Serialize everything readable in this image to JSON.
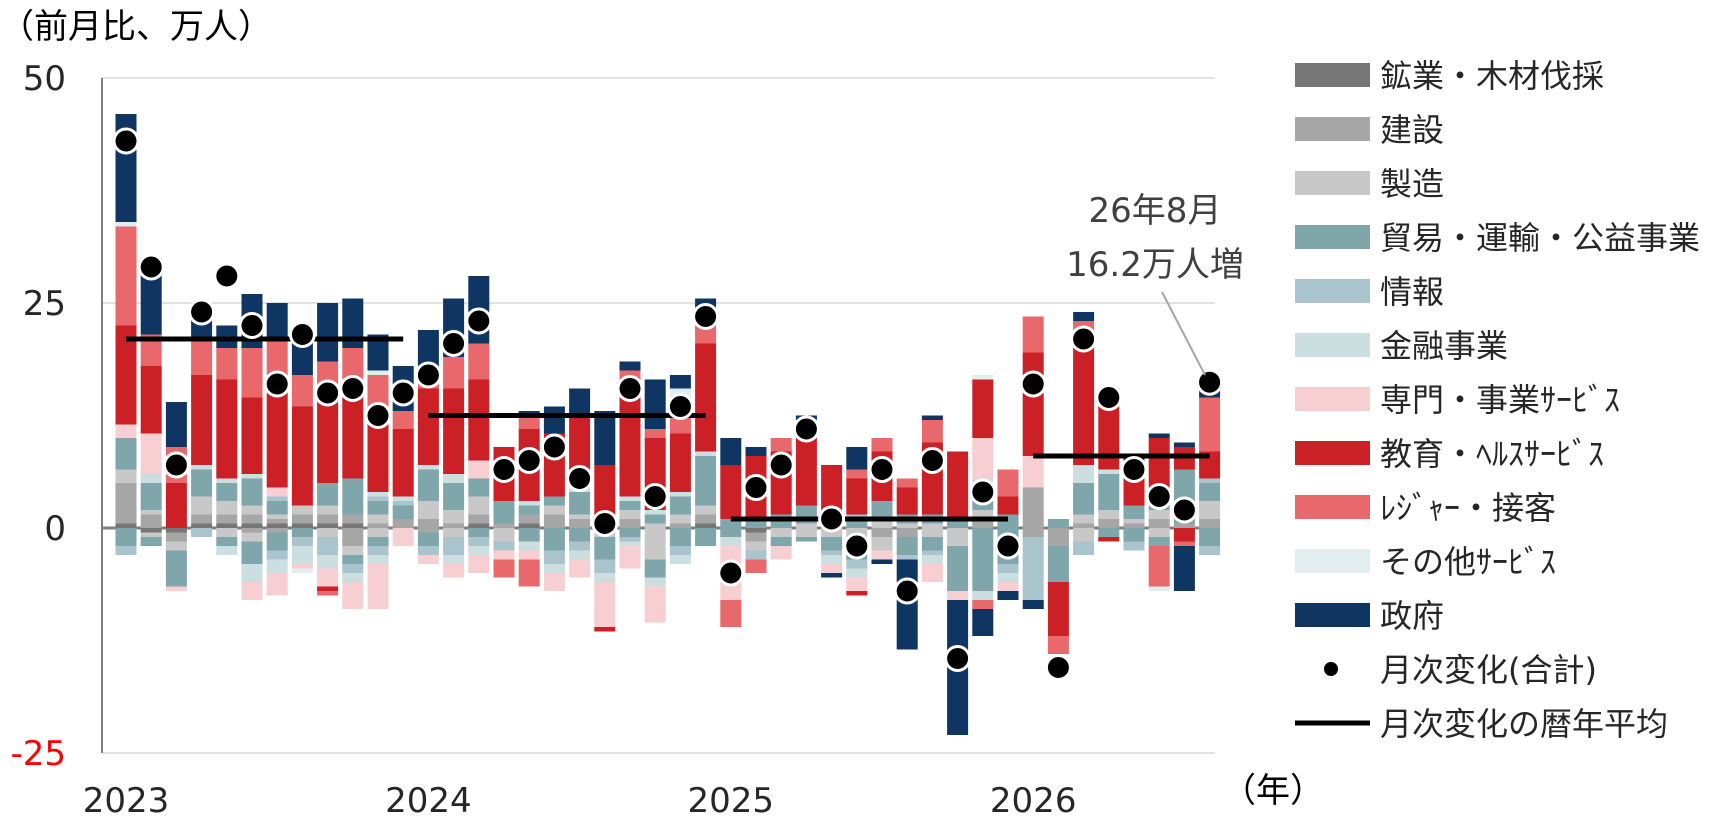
{
  "chart_data": {
    "type": "bar",
    "ylabel": "（前月比、万人）",
    "xlabel": "（年）",
    "ylim": [
      -25,
      50
    ],
    "yticks": [
      50,
      25,
      0,
      -25
    ],
    "xticks": [
      "2023",
      "2024",
      "2025",
      "2026"
    ],
    "grid": true,
    "legend_position": "right",
    "annotation": {
      "line1": "26年8月",
      "line2": "16.2万人増"
    },
    "colors": {
      "mining": "#767676",
      "construction": "#a6a6a6",
      "manufacturing": "#c8c8c8",
      "trade": "#7ea6ab",
      "information": "#a9c4cd",
      "finance": "#cbdfe0",
      "professional": "#f7cfd2",
      "health": "#cc2027",
      "leisure": "#e9686b",
      "other": "#e3edf0",
      "government": "#0f3562",
      "negative_tick": "#ff0000"
    },
    "legend": [
      {
        "key": "mining",
        "label": "鉱業・木材伐採"
      },
      {
        "key": "construction",
        "label": "建設"
      },
      {
        "key": "manufacturing",
        "label": "製造"
      },
      {
        "key": "trade",
        "label": "貿易・運輸・公益事業"
      },
      {
        "key": "information",
        "label": "情報"
      },
      {
        "key": "finance",
        "label": "金融事業"
      },
      {
        "key": "professional",
        "label": "専門・事業ｻｰﾋﾞｽ"
      },
      {
        "key": "health",
        "label": "教育・ﾍﾙｽｻｰﾋﾞｽ"
      },
      {
        "key": "leisure",
        "label": "ﾚｼﾞｬｰ・接客"
      },
      {
        "key": "other",
        "label": "その他ｻｰﾋﾞｽ"
      },
      {
        "key": "government",
        "label": "政府"
      },
      {
        "key": "total",
        "label": "月次変化(合計)"
      },
      {
        "key": "average",
        "label": "月次変化の暦年平均"
      }
    ],
    "series_keys": [
      "mining",
      "construction",
      "manufacturing",
      "trade",
      "information",
      "finance",
      "professional",
      "health",
      "leisure",
      "other",
      "government"
    ],
    "months": [
      "2023-01",
      "2023-02",
      "2023-03",
      "2023-04",
      "2023-05",
      "2023-06",
      "2023-07",
      "2023-08",
      "2023-09",
      "2023-10",
      "2023-11",
      "2023-12",
      "2024-01",
      "2024-02",
      "2024-03",
      "2024-04",
      "2024-05",
      "2024-06",
      "2024-07",
      "2024-08",
      "2024-09",
      "2024-10",
      "2024-11",
      "2024-12",
      "2025-01",
      "2025-02",
      "2025-03",
      "2025-04",
      "2025-05",
      "2025-06",
      "2025-07",
      "2025-08",
      "2025-09",
      "2025-10",
      "2025-11",
      "2025-12",
      "2026-01",
      "2026-02",
      "2026-03",
      "2026-04",
      "2026-05",
      "2026-06",
      "2026-07",
      "2026-08"
    ],
    "bars": [
      {
        "v": [
          0.5,
          4.5,
          1.5,
          3.5,
          0,
          0,
          1.5,
          11,
          11,
          0.5,
          12
        ],
        "neg": [
          0,
          0,
          0,
          -2,
          -1,
          0,
          0,
          0,
          0,
          0,
          0
        ]
      },
      {
        "v": [
          0,
          1.5,
          0.5,
          3,
          0,
          1,
          4.5,
          7.5,
          3.5,
          0,
          8.5
        ],
        "neg": [
          -0.5,
          0,
          -0.5,
          -1,
          0,
          0,
          0,
          0,
          0,
          0,
          0
        ]
      },
      {
        "v": [
          0,
          0,
          0,
          0,
          0,
          0,
          0,
          5,
          4,
          0,
          5
        ],
        "neg": [
          -0.5,
          -1,
          -1,
          -4,
          0,
          0,
          -0.5,
          0,
          0,
          0,
          0
        ]
      },
      {
        "v": [
          0.5,
          1,
          2,
          3,
          0,
          0.5,
          0,
          10,
          4,
          0,
          3
        ],
        "neg": [
          0,
          0,
          0,
          0,
          -1,
          0,
          0,
          0,
          0,
          0,
          0
        ]
      },
      {
        "v": [
          0.5,
          1,
          1.5,
          2,
          0,
          0.5,
          0,
          11,
          3.5,
          0,
          2.5
        ],
        "neg": [
          0,
          0,
          -1,
          -1,
          0,
          -1,
          0,
          0,
          0,
          0,
          0
        ]
      },
      {
        "v": [
          0.5,
          1,
          1,
          3,
          0,
          0.5,
          0,
          8.5,
          5.5,
          0,
          6
        ],
        "neg": [
          0,
          -0.5,
          -1,
          -2.5,
          0,
          -2,
          -2,
          0,
          0,
          0,
          0
        ]
      },
      {
        "v": [
          0.5,
          0.5,
          0.5,
          1.5,
          0.5,
          0,
          1,
          11,
          5.5,
          0,
          4
        ],
        "neg": [
          0,
          -0.5,
          0,
          -2,
          -1,
          -1.5,
          -2.5,
          0,
          0,
          0,
          0
        ]
      },
      {
        "v": [
          0.5,
          1,
          1,
          0,
          0,
          0,
          0,
          11,
          3.5,
          0,
          4.5
        ],
        "neg": [
          0,
          0,
          0,
          -1,
          -1,
          -2,
          -0.5,
          0,
          0,
          -0.5,
          0
        ]
      },
      {
        "v": [
          0.5,
          1,
          1,
          2.5,
          0,
          0,
          0,
          9.5,
          4,
          0,
          6.5
        ],
        "neg": [
          0,
          0,
          -1,
          0,
          -2,
          -1.5,
          -2,
          -0.5,
          -0.5,
          0,
          0
        ]
      },
      {
        "v": [
          0.5,
          1,
          0,
          4,
          0,
          0,
          0,
          10.5,
          4,
          0,
          5.5
        ],
        "neg": [
          0,
          -2,
          -1,
          -1,
          -1,
          -1,
          -3,
          0,
          0,
          0,
          0
        ]
      },
      {
        "v": [
          0,
          0.5,
          1,
          1.5,
          0.5,
          0.5,
          0,
          9,
          4,
          0.5,
          4
        ],
        "neg": [
          0,
          0,
          -1,
          -1,
          -1,
          -1,
          -5,
          0,
          0,
          0,
          0
        ]
      },
      {
        "v": [
          0,
          1,
          0,
          1.5,
          0.5,
          0.5,
          0,
          7.5,
          2,
          0,
          5
        ],
        "neg": [
          0,
          0,
          0,
          0,
          0,
          0,
          -2,
          0,
          0,
          0,
          0
        ]
      },
      {
        "v": [
          0,
          1,
          2,
          3.5,
          0,
          0.5,
          0,
          8.5,
          1.5,
          0,
          5
        ],
        "neg": [
          0,
          -0.5,
          0,
          -1.5,
          -1,
          0,
          -1,
          0,
          0,
          0,
          0
        ]
      },
      {
        "v": [
          0,
          0.5,
          1.5,
          3,
          0,
          1,
          0,
          9.5,
          3.5,
          0,
          6.5
        ],
        "neg": [
          0,
          0,
          -1,
          0,
          -2,
          -1,
          -1.5,
          0,
          0,
          0,
          0
        ]
      },
      {
        "v": [
          0.5,
          1,
          2,
          2,
          0,
          0,
          2,
          9,
          4,
          0,
          7.5
        ],
        "neg": [
          0,
          0,
          0,
          -1,
          -1,
          -1,
          -2,
          0,
          0,
          0,
          0
        ]
      },
      {
        "v": [
          0,
          0.5,
          0,
          2.5,
          0,
          0,
          0,
          6,
          0,
          0,
          0
        ],
        "neg": [
          0,
          0,
          -1.5,
          0,
          -1,
          0,
          -1,
          0,
          -2,
          0,
          0
        ]
      },
      {
        "v": [
          0.5,
          1,
          0,
          1,
          0,
          0.5,
          0,
          8,
          1.5,
          0,
          0.5
        ],
        "neg": [
          0,
          0,
          0,
          -1.5,
          0,
          -1,
          -1,
          0,
          -3,
          0,
          0
        ]
      },
      {
        "v": [
          0,
          1.5,
          1,
          1,
          0,
          0,
          0,
          7,
          0,
          0,
          3
        ],
        "neg": [
          0,
          0,
          0,
          -2.5,
          -1.5,
          -1,
          -2,
          0,
          0,
          0,
          0
        ]
      },
      {
        "v": [
          0,
          1,
          0.5,
          2.5,
          0,
          0.5,
          0.5,
          7.5,
          0,
          0,
          3
        ],
        "neg": [
          0,
          0,
          0,
          -1.5,
          -1,
          -1,
          -2,
          0,
          0,
          0,
          0
        ]
      },
      {
        "v": [
          0,
          0.5,
          0,
          0.5,
          0,
          0,
          0,
          6,
          0,
          0,
          6
        ],
        "neg": [
          0,
          0,
          -1,
          -2.5,
          -1.5,
          -1,
          -5,
          -0.5,
          0,
          0,
          0
        ]
      },
      {
        "v": [
          0,
          1,
          1,
          1,
          0,
          0.5,
          0,
          13,
          1,
          0,
          1
        ],
        "neg": [
          0,
          0,
          0,
          -1,
          -0.5,
          -0.5,
          -2.5,
          0,
          0,
          0,
          0
        ]
      },
      {
        "v": [
          0,
          0,
          0.5,
          1,
          0,
          0.5,
          0,
          8,
          1,
          0,
          5.5
        ],
        "neg": [
          0,
          0,
          -3.5,
          -2,
          0,
          -1,
          -4,
          0,
          0,
          0,
          0
        ]
      },
      {
        "v": [
          0,
          0.5,
          1,
          2,
          0,
          0.5,
          0,
          6.5,
          4,
          1,
          1.5
        ],
        "neg": [
          0,
          0,
          0,
          -2,
          -1,
          -1,
          0,
          0,
          0,
          0,
          0
        ]
      },
      {
        "v": [
          0.5,
          1,
          1,
          5.5,
          0,
          0.5,
          0,
          12,
          3,
          1,
          1
        ],
        "neg": [
          0,
          0,
          0,
          -2,
          0,
          0,
          0,
          0,
          0,
          0,
          0
        ]
      },
      {
        "v": [
          0,
          0,
          0,
          1,
          0,
          0,
          0,
          6,
          0,
          0,
          3
        ],
        "neg": [
          0,
          0,
          0,
          -1,
          0,
          -1,
          -6,
          0,
          -3,
          0,
          0
        ]
      },
      {
        "v": [
          0,
          0,
          0,
          1,
          0,
          0,
          0,
          7,
          0,
          0,
          1
        ],
        "neg": [
          -0.5,
          -1,
          -1,
          0,
          -1,
          0,
          0,
          0,
          -1.5,
          0,
          0
        ]
      },
      {
        "v": [
          0,
          0,
          0,
          1.5,
          0,
          0,
          0,
          7,
          1.5,
          0,
          0
        ],
        "neg": [
          0,
          0,
          -1,
          -1,
          0,
          0,
          -1.5,
          0,
          0,
          0,
          0
        ]
      },
      {
        "v": [
          0,
          0,
          0.5,
          2,
          0,
          0,
          0,
          7.5,
          2,
          0,
          0.5
        ],
        "neg": [
          0,
          0,
          -1,
          -0.5,
          0,
          0,
          0,
          0,
          0,
          0,
          0
        ]
      },
      {
        "v": [
          0,
          0,
          0,
          0,
          0,
          0,
          0,
          7,
          0,
          0,
          0
        ],
        "neg": [
          0,
          0,
          -1,
          -1.5,
          -0.5,
          -1,
          -1,
          0,
          0,
          0,
          -0.5
        ]
      },
      {
        "v": [
          0,
          0,
          0,
          1,
          0.5,
          0,
          0,
          4,
          1,
          0,
          2.5
        ],
        "neg": [
          0,
          0,
          -2,
          -1.5,
          -1,
          -1,
          -1.5,
          -0.5,
          0,
          0,
          0
        ]
      },
      {
        "v": [
          0,
          0,
          1,
          2,
          0,
          0,
          0,
          5.5,
          1.5,
          0,
          0
        ],
        "neg": [
          0,
          -1,
          -1.5,
          0,
          0,
          0,
          -1,
          0,
          0,
          0,
          -0.5
        ]
      },
      {
        "v": [
          0,
          0,
          0.5,
          1,
          0,
          0,
          0,
          3,
          1,
          0,
          0
        ],
        "neg": [
          0,
          -1,
          0,
          -2,
          -0.5,
          0,
          0,
          0,
          0,
          0,
          -10
        ]
      },
      {
        "v": [
          0,
          0,
          0.5,
          1,
          0,
          0,
          0,
          8,
          2.5,
          0,
          0.5
        ],
        "neg": [
          0,
          0,
          -1,
          -1.5,
          -0.5,
          -1,
          -2,
          0,
          0,
          0,
          0
        ]
      },
      {
        "v": [
          0,
          0,
          0,
          1,
          0,
          0,
          0,
          7.5,
          0,
          0,
          0
        ],
        "neg": [
          0,
          0,
          -2,
          -5,
          0,
          0,
          -1,
          0,
          0,
          0,
          -15
        ]
      },
      {
        "v": [
          0,
          1,
          1,
          2,
          0.5,
          1,
          4.5,
          6.5,
          0,
          0.5,
          0
        ],
        "neg": [
          0,
          0,
          0,
          -7,
          0,
          -1,
          0,
          0,
          -1,
          0,
          -3
        ]
      },
      {
        "v": [
          0,
          0,
          0,
          1.5,
          0,
          0,
          0,
          2,
          3,
          0,
          0
        ],
        "neg": [
          0,
          0,
          0,
          -4,
          -1,
          -1,
          -1,
          0,
          0,
          0,
          -1
        ]
      },
      {
        "v": [
          0,
          4.5,
          0,
          0,
          0,
          0,
          3.5,
          11.5,
          4,
          0,
          0
        ],
        "neg": [
          0,
          -1,
          0,
          0,
          -7,
          0,
          0,
          0,
          0,
          0,
          -1
        ]
      },
      {
        "v": [
          0,
          0,
          0,
          1,
          0,
          0,
          0,
          0,
          0,
          0,
          0
        ],
        "neg": [
          0,
          -2,
          0,
          -4,
          0,
          0,
          0,
          -6,
          -2,
          0,
          0
        ]
      },
      {
        "v": [
          0,
          0.5,
          1,
          3.5,
          0,
          2,
          0,
          13,
          3,
          0,
          1
        ],
        "neg": [
          0,
          0,
          -1.5,
          0,
          -1.5,
          0,
          0,
          0,
          0,
          0,
          0
        ]
      },
      {
        "v": [
          0,
          1,
          1,
          4,
          0,
          0.5,
          0,
          7,
          1.5,
          0,
          0.5
        ],
        "neg": [
          0,
          0,
          0,
          -1,
          0,
          0,
          0,
          -0.5,
          0,
          0,
          0
        ]
      },
      {
        "v": [
          0,
          0.5,
          0.5,
          1.5,
          0,
          0,
          0,
          5,
          0,
          0,
          0.5
        ],
        "neg": [
          0,
          0,
          0,
          -1.5,
          -1,
          0,
          0,
          0,
          0,
          0,
          0
        ]
      },
      {
        "v": [
          0,
          1,
          1,
          2,
          0,
          0,
          0,
          6,
          0,
          0,
          0.5
        ],
        "neg": [
          0,
          0,
          -1,
          -1,
          0,
          0,
          0,
          0,
          -4.5,
          -0.5,
          0
        ]
      },
      {
        "v": [
          0,
          0.5,
          0,
          6,
          0,
          0,
          0,
          2.5,
          0,
          0,
          0.5
        ],
        "neg": [
          0,
          0,
          0,
          0,
          0,
          0,
          0,
          -1.5,
          -0.5,
          0,
          -5
        ]
      },
      {
        "v": [
          0,
          1,
          2,
          2,
          0.5,
          0,
          0,
          3,
          6,
          0,
          2.5
        ],
        "neg": [
          0,
          0,
          0,
          -2,
          -1,
          0,
          0,
          0,
          0,
          0,
          0
        ]
      }
    ],
    "totals": [
      43,
      29,
      7,
      24,
      28,
      22.5,
      16,
      21.5,
      15,
      15.5,
      12.5,
      15,
      17,
      20.5,
      23,
      6.5,
      7.5,
      9,
      5.5,
      0.5,
      15.5,
      3.5,
      13.5,
      23.5,
      -5,
      4.5,
      7,
      11,
      1,
      -2,
      6.5,
      -7,
      7.5,
      -14.5,
      4,
      -2,
      16,
      -15.5,
      21,
      14.5,
      6.5,
      3.5,
      2,
      16.2
    ],
    "averages": [
      {
        "year": "2023",
        "value": 21,
        "from": "2023-01",
        "to": "2023-12"
      },
      {
        "year": "2024",
        "value": 12.5,
        "from": "2024-01",
        "to": "2024-12"
      },
      {
        "year": "2025",
        "value": 1,
        "from": "2025-01",
        "to": "2025-12"
      },
      {
        "year": "2026",
        "value": 8,
        "from": "2026-01",
        "to": "2026-08"
      }
    ]
  }
}
